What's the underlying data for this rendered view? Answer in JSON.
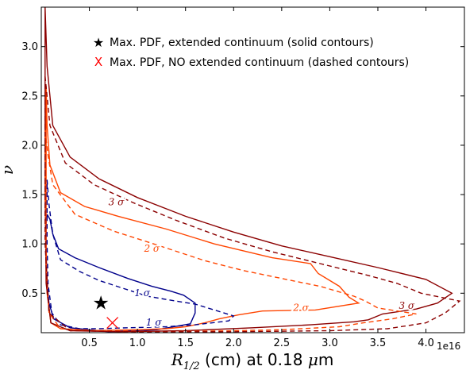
{
  "chart_data": {
    "type": "line",
    "xlabel": "$R_{1/2}$ (cm) at 0.18 $\\mu$m",
    "xlabel_parts": {
      "symbol": "R",
      "subscript": "1/2",
      "rest": " (cm) at 0.18 ",
      "mu": "μ",
      "unit": "m"
    },
    "ylabel": "ν",
    "x_offset_text": "1e16",
    "xlim": [
      0.0,
      4.4
    ],
    "ylim": [
      0.1,
      3.4
    ],
    "x_ticks": [
      0.5,
      1.0,
      1.5,
      2.0,
      2.5,
      3.0,
      3.5,
      4.0
    ],
    "x_tick_labels": [
      "0.5",
      "1.0",
      "1.5",
      "2.0",
      "2.5",
      "3.0",
      "3.5",
      "4.0"
    ],
    "y_ticks": [
      0.5,
      1.0,
      1.5,
      2.0,
      2.5,
      3.0
    ],
    "y_tick_labels": [
      "0.5",
      "1.0",
      "1.5",
      "2.0",
      "2.5",
      "3.0"
    ],
    "grid": false,
    "legend_position": "top-center",
    "legend": [
      {
        "marker": "★",
        "color": "#000000",
        "label": "Max. PDF, extended continuum (solid contours)"
      },
      {
        "marker": "X",
        "color": "#ff0000",
        "label": "Max. PDF, NO extended continuum (dashed contours)"
      }
    ],
    "colors": {
      "one_sigma": "#00008b",
      "two_sigma": "#ff4500",
      "three_sigma": "#8b0000"
    },
    "series": [
      {
        "level": "1σ",
        "style": "solid",
        "color": "#00008b",
        "points": [
          [
            0.06,
            1.3
          ],
          [
            0.09,
            1.25
          ],
          [
            0.12,
            1.1
          ],
          [
            0.18,
            0.95
          ],
          [
            0.35,
            0.86
          ],
          [
            0.6,
            0.76
          ],
          [
            0.9,
            0.65
          ],
          [
            1.15,
            0.57
          ],
          [
            1.35,
            0.52
          ],
          [
            1.48,
            0.48
          ],
          [
            1.6,
            0.4
          ],
          [
            1.6,
            0.3
          ],
          [
            1.55,
            0.19
          ],
          [
            1.2,
            0.13
          ],
          [
            0.7,
            0.11
          ],
          [
            0.3,
            0.15
          ],
          [
            0.13,
            0.24
          ],
          [
            0.08,
            0.4
          ],
          [
            0.06,
            0.6
          ],
          [
            0.05,
            0.9
          ],
          [
            0.05,
            1.2
          ],
          [
            0.06,
            1.3
          ]
        ]
      },
      {
        "level": "2σ",
        "style": "solid",
        "color": "#ff4500",
        "points": [
          [
            0.05,
            2.6
          ],
          [
            0.06,
            2.2
          ],
          [
            0.09,
            1.8
          ],
          [
            0.2,
            1.52
          ],
          [
            0.45,
            1.38
          ],
          [
            0.8,
            1.28
          ],
          [
            1.3,
            1.15
          ],
          [
            1.8,
            1.0
          ],
          [
            2.4,
            0.86
          ],
          [
            2.8,
            0.8
          ],
          [
            2.88,
            0.7
          ],
          [
            3.1,
            0.57
          ],
          [
            3.2,
            0.46
          ],
          [
            3.3,
            0.4
          ],
          [
            2.85,
            0.33
          ],
          [
            2.3,
            0.32
          ],
          [
            2.05,
            0.28
          ],
          [
            1.85,
            0.24
          ],
          [
            1.7,
            0.2
          ],
          [
            1.5,
            0.16
          ],
          [
            1.3,
            0.14
          ],
          [
            1.0,
            0.13
          ],
          [
            0.5,
            0.12
          ],
          [
            0.2,
            0.14
          ],
          [
            0.1,
            0.2
          ],
          [
            0.06,
            0.5
          ],
          [
            0.05,
            1.0
          ],
          [
            0.05,
            2.0
          ],
          [
            0.05,
            2.6
          ]
        ]
      },
      {
        "level": "3σ",
        "style": "solid",
        "color": "#8b0000",
        "points": [
          [
            0.04,
            3.4
          ],
          [
            0.06,
            2.8
          ],
          [
            0.12,
            2.2
          ],
          [
            0.3,
            1.88
          ],
          [
            0.6,
            1.66
          ],
          [
            1.0,
            1.47
          ],
          [
            1.5,
            1.28
          ],
          [
            2.0,
            1.12
          ],
          [
            2.5,
            0.98
          ],
          [
            3.0,
            0.87
          ],
          [
            3.5,
            0.76
          ],
          [
            4.0,
            0.64
          ],
          [
            4.27,
            0.5
          ],
          [
            4.12,
            0.4
          ],
          [
            3.9,
            0.34
          ],
          [
            3.55,
            0.29
          ],
          [
            3.4,
            0.23
          ],
          [
            3.25,
            0.21
          ],
          [
            2.8,
            0.18
          ],
          [
            2.2,
            0.15
          ],
          [
            1.5,
            0.12
          ],
          [
            0.8,
            0.11
          ],
          [
            0.3,
            0.12
          ],
          [
            0.1,
            0.2
          ],
          [
            0.05,
            0.6
          ],
          [
            0.04,
            1.5
          ],
          [
            0.04,
            3.4
          ]
        ]
      },
      {
        "level": "1σ",
        "style": "dashed",
        "color": "#00008b",
        "points": [
          [
            0.06,
            1.65
          ],
          [
            0.08,
            1.4
          ],
          [
            0.12,
            1.1
          ],
          [
            0.2,
            0.84
          ],
          [
            0.4,
            0.72
          ],
          [
            0.6,
            0.63
          ],
          [
            0.85,
            0.55
          ],
          [
            1.1,
            0.47
          ],
          [
            1.4,
            0.42
          ],
          [
            1.6,
            0.39
          ],
          [
            1.8,
            0.33
          ],
          [
            2.0,
            0.27
          ],
          [
            1.95,
            0.22
          ],
          [
            1.6,
            0.18
          ],
          [
            1.3,
            0.16
          ],
          [
            0.9,
            0.15
          ],
          [
            0.6,
            0.14
          ],
          [
            0.4,
            0.14
          ],
          [
            0.2,
            0.18
          ],
          [
            0.11,
            0.3
          ],
          [
            0.07,
            0.6
          ],
          [
            0.06,
            1.0
          ],
          [
            0.06,
            1.65
          ]
        ]
      },
      {
        "level": "2σ",
        "style": "dashed",
        "color": "#ff4500",
        "points": [
          [
            0.04,
            2.15
          ],
          [
            0.07,
            1.9
          ],
          [
            0.12,
            1.6
          ],
          [
            0.35,
            1.3
          ],
          [
            0.75,
            1.13
          ],
          [
            1.2,
            0.99
          ],
          [
            1.7,
            0.83
          ],
          [
            2.1,
            0.73
          ],
          [
            2.5,
            0.65
          ],
          [
            2.9,
            0.57
          ],
          [
            3.25,
            0.47
          ],
          [
            3.37,
            0.42
          ],
          [
            3.5,
            0.35
          ],
          [
            3.9,
            0.29
          ],
          [
            3.65,
            0.24
          ],
          [
            3.35,
            0.2
          ],
          [
            3.1,
            0.16
          ],
          [
            2.5,
            0.13
          ],
          [
            2.0,
            0.12
          ],
          [
            1.3,
            0.11
          ],
          [
            0.6,
            0.12
          ],
          [
            0.2,
            0.14
          ],
          [
            0.08,
            0.3
          ],
          [
            0.05,
            0.8
          ],
          [
            0.04,
            1.5
          ],
          [
            0.04,
            2.15
          ]
        ]
      },
      {
        "level": "3σ",
        "style": "dashed",
        "color": "#8b0000",
        "points": [
          [
            0.04,
            2.7
          ],
          [
            0.09,
            2.2
          ],
          [
            0.25,
            1.82
          ],
          [
            0.55,
            1.6
          ],
          [
            0.95,
            1.42
          ],
          [
            1.4,
            1.24
          ],
          [
            1.9,
            1.06
          ],
          [
            2.4,
            0.92
          ],
          [
            2.9,
            0.8
          ],
          [
            3.4,
            0.68
          ],
          [
            3.7,
            0.6
          ],
          [
            3.95,
            0.5
          ],
          [
            4.35,
            0.42
          ],
          [
            4.2,
            0.3
          ],
          [
            4.0,
            0.2
          ],
          [
            3.6,
            0.14
          ],
          [
            3.0,
            0.12
          ],
          [
            2.0,
            0.11
          ],
          [
            1.0,
            0.11
          ],
          [
            0.3,
            0.12
          ],
          [
            0.08,
            0.3
          ],
          [
            0.04,
            1.0
          ],
          [
            0.04,
            2.7
          ]
        ]
      }
    ],
    "contour_labels": [
      {
        "text": "1 σ",
        "x": 1.05,
        "y": 0.5,
        "color": "#00008b"
      },
      {
        "text": "1 σ",
        "x": 1.17,
        "y": 0.2,
        "color": "#00008b"
      },
      {
        "text": "2 σ",
        "x": 1.15,
        "y": 0.95,
        "color": "#ff4500"
      },
      {
        "text": "2 σ",
        "x": 2.7,
        "y": 0.35,
        "color": "#ff4500"
      },
      {
        "text": "3 σ",
        "x": 0.78,
        "y": 1.42,
        "color": "#8b0000"
      },
      {
        "text": "3 σ",
        "x": 3.8,
        "y": 0.37,
        "color": "#8b0000"
      }
    ],
    "markers": [
      {
        "symbol": "★",
        "x": 0.62,
        "y": 0.4,
        "color": "#000000"
      },
      {
        "symbol": "X",
        "x": 0.74,
        "y": 0.2,
        "color": "#ff0000"
      }
    ]
  }
}
